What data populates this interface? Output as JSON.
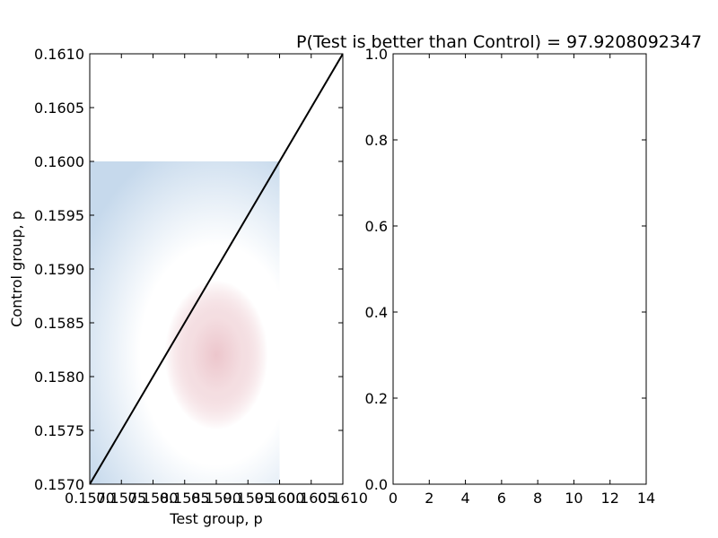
{
  "chart_data": [
    {
      "type": "heatmap",
      "title": "",
      "xlabel": "Test group, p",
      "ylabel": "Control group, p",
      "xlim": [
        0.157,
        0.161
      ],
      "ylim": [
        0.157,
        0.161
      ],
      "heatmap_extent": {
        "x": [
          0.157,
          0.16
        ],
        "y": [
          0.157,
          0.16
        ]
      },
      "density_peak": {
        "x": 0.159,
        "y": 0.1582
      },
      "diagonal_line": {
        "x": [
          0.157,
          0.161
        ],
        "y": [
          0.157,
          0.161
        ],
        "color": "#000000"
      },
      "x_ticks": [
        0.157,
        0.1575,
        0.158,
        0.1585,
        0.159,
        0.1595,
        0.16,
        0.1605,
        0.161
      ],
      "x_tick_labels": [
        "0.1570",
        "0.1575",
        "0.1580",
        "0.1585",
        "0.1590",
        "0.1595",
        "0.1600",
        "0.1605",
        "0.1610"
      ],
      "y_ticks": [
        0.157,
        0.1575,
        0.158,
        0.1585,
        0.159,
        0.1595,
        0.16,
        0.1605,
        0.161
      ],
      "y_tick_labels": [
        "0.1570",
        "0.1575",
        "0.1580",
        "0.1585",
        "0.1590",
        "0.1595",
        "0.1600",
        "0.1605",
        "0.1610"
      ],
      "colors": {
        "low": "#c6d9ec",
        "mid": "#ffffff",
        "high": "#e9bcc3"
      },
      "grid": false
    },
    {
      "type": "line",
      "title": "P(Test is better than Control) = 97.9208092347",
      "xlabel": "",
      "ylabel": "",
      "xlim": [
        0,
        14
      ],
      "ylim": [
        0,
        1
      ],
      "series": [],
      "x_ticks": [
        0,
        2,
        4,
        6,
        8,
        10,
        12,
        14
      ],
      "x_tick_labels": [
        "0",
        "2",
        "4",
        "6",
        "8",
        "10",
        "12",
        "14"
      ],
      "y_ticks": [
        0,
        0.2,
        0.4,
        0.6,
        0.8,
        1
      ],
      "y_tick_labels": [
        "0.0",
        "0.2",
        "0.4",
        "0.6",
        "0.8",
        "1.0"
      ],
      "grid": false
    }
  ]
}
